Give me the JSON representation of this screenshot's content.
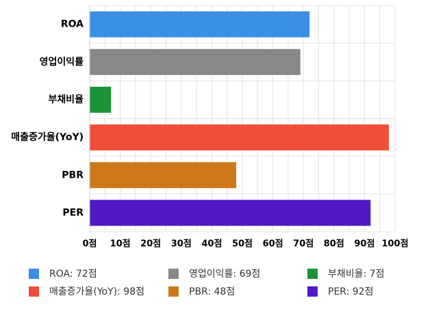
{
  "chart_data": {
    "type": "bar",
    "orientation": "horizontal",
    "categories": [
      "ROA",
      "영업이익률",
      "부채비율",
      "매출증가율(YoY)",
      "PBR",
      "PER"
    ],
    "values": [
      72,
      69,
      7,
      98,
      48,
      92
    ],
    "unit": "점",
    "colors": [
      "#3a8ee6",
      "#888888",
      "#1a9434",
      "#f04e3a",
      "#cc7818",
      "#5019c4"
    ],
    "xlim": [
      0,
      100
    ],
    "xticks": [
      0,
      10,
      20,
      30,
      40,
      50,
      60,
      70,
      80,
      90,
      100
    ],
    "xtick_labels": [
      "0점",
      "10점",
      "20점",
      "30점",
      "40점",
      "50점",
      "60점",
      "70점",
      "80점",
      "90점",
      "100점"
    ],
    "grid": true,
    "legend_position": "bottom",
    "legend": [
      {
        "label": "ROA: 72점",
        "color": "#3a8ee6"
      },
      {
        "label": "영업이익률: 69점",
        "color": "#888888"
      },
      {
        "label": "부채비율: 7점",
        "color": "#1a9434"
      },
      {
        "label": "매출증가율(YoY): 98점",
        "color": "#f04e3a"
      },
      {
        "label": "PBR: 48점",
        "color": "#cc7818"
      },
      {
        "label": "PER: 92점",
        "color": "#5019c4"
      }
    ]
  }
}
